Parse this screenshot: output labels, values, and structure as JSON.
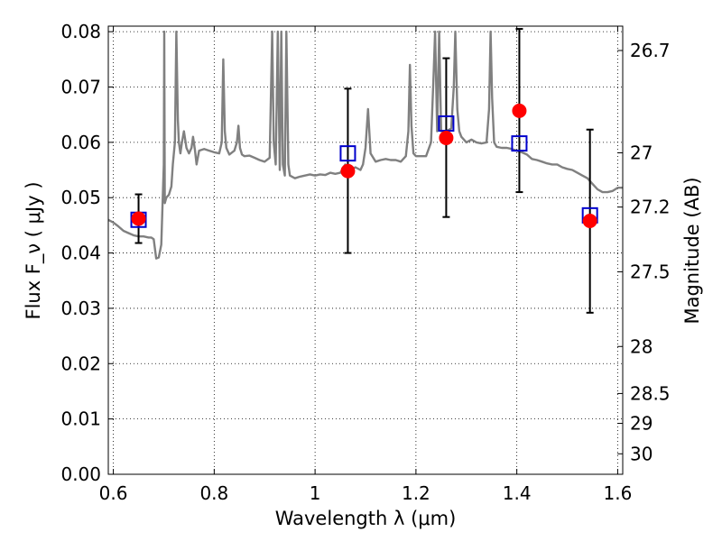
{
  "chart_data": {
    "type": "scatter",
    "xlabel": "Wavelength  λ (μm)",
    "ylabel": "Flux  F_ν  ( μJy )",
    "ylabel_right": "Magnitude (AB)",
    "xlim": [
      0.59,
      1.61
    ],
    "ylim": [
      0.0,
      0.081
    ],
    "grid": true,
    "x_ticks": [
      0.6,
      0.8,
      1.0,
      1.2,
      1.4,
      1.6
    ],
    "x_tick_labels": [
      "0.6",
      "0.8",
      "1",
      "1.2",
      "1.4",
      "1.6"
    ],
    "y_ticks": [
      0.0,
      0.01,
      0.02,
      0.03,
      0.04,
      0.05,
      0.06,
      0.07,
      0.08
    ],
    "y_tick_labels": [
      "0.00",
      "0.01",
      "0.02",
      "0.03",
      "0.04",
      "0.05",
      "0.06",
      "0.07",
      "0.08"
    ],
    "right_ticks": [
      {
        "label": "26.7",
        "flux": 0.0766
      },
      {
        "label": "27",
        "flux": 0.0581
      },
      {
        "label": "27.2",
        "flux": 0.0483
      },
      {
        "label": "27.5",
        "flux": 0.0366
      },
      {
        "label": "28",
        "flux": 0.0231
      },
      {
        "label": "28.5",
        "flux": 0.0146
      },
      {
        "label": "29",
        "flux": 0.0092
      },
      {
        "label": "30",
        "flux": 0.0037
      }
    ],
    "series": [
      {
        "kind": "model-spectrum",
        "color": "#808080",
        "x": [
          0.59,
          0.6,
          0.61,
          0.62,
          0.63,
          0.64,
          0.65,
          0.66,
          0.67,
          0.675,
          0.68,
          0.685,
          0.69,
          0.695,
          0.7,
          0.701,
          0.702,
          0.705,
          0.71,
          0.715,
          0.718,
          0.722,
          0.725,
          0.728,
          0.73,
          0.733,
          0.736,
          0.74,
          0.745,
          0.75,
          0.755,
          0.758,
          0.762,
          0.765,
          0.77,
          0.78,
          0.79,
          0.8,
          0.81,
          0.815,
          0.818,
          0.821,
          0.824,
          0.83,
          0.84,
          0.845,
          0.848,
          0.851,
          0.855,
          0.86,
          0.87,
          0.88,
          0.89,
          0.9,
          0.91,
          0.915,
          0.918,
          0.922,
          0.926,
          0.93,
          0.933,
          0.936,
          0.94,
          0.943,
          0.947,
          0.95,
          0.96,
          0.97,
          0.98,
          0.99,
          1.0,
          1.01,
          1.02,
          1.03,
          1.04,
          1.05,
          1.06,
          1.07,
          1.08,
          1.09,
          1.095,
          1.1,
          1.105,
          1.11,
          1.12,
          1.13,
          1.14,
          1.15,
          1.16,
          1.17,
          1.18,
          1.185,
          1.188,
          1.191,
          1.195,
          1.2,
          1.21,
          1.22,
          1.23,
          1.235,
          1.238,
          1.242,
          1.246,
          1.25,
          1.26,
          1.27,
          1.275,
          1.278,
          1.282,
          1.286,
          1.29,
          1.3,
          1.31,
          1.32,
          1.33,
          1.34,
          1.345,
          1.348,
          1.351,
          1.355,
          1.36,
          1.37,
          1.38,
          1.39,
          1.4,
          1.41,
          1.42,
          1.43,
          1.44,
          1.45,
          1.46,
          1.47,
          1.48,
          1.49,
          1.5,
          1.51,
          1.52,
          1.53,
          1.54,
          1.55,
          1.56,
          1.57,
          1.58,
          1.59,
          1.6,
          1.61
        ],
        "y": [
          0.046,
          0.0455,
          0.0448,
          0.044,
          0.0436,
          0.0432,
          0.043,
          0.043,
          0.0428,
          0.0428,
          0.0425,
          0.039,
          0.0392,
          0.0415,
          0.056,
          0.08,
          0.049,
          0.05,
          0.0505,
          0.052,
          0.056,
          0.06,
          0.08,
          0.064,
          0.06,
          0.058,
          0.06,
          0.062,
          0.059,
          0.058,
          0.059,
          0.061,
          0.0585,
          0.056,
          0.0585,
          0.0588,
          0.0585,
          0.0582,
          0.058,
          0.06,
          0.075,
          0.062,
          0.059,
          0.0578,
          0.0585,
          0.06,
          0.063,
          0.059,
          0.0578,
          0.0575,
          0.0576,
          0.0572,
          0.0568,
          0.0565,
          0.0572,
          0.08,
          0.06,
          0.056,
          0.08,
          0.055,
          0.08,
          0.056,
          0.054,
          0.08,
          0.056,
          0.054,
          0.0535,
          0.0538,
          0.054,
          0.0542,
          0.054,
          0.0542,
          0.0541,
          0.0545,
          0.0543,
          0.0545,
          0.056,
          0.055,
          0.0555,
          0.055,
          0.056,
          0.059,
          0.066,
          0.058,
          0.0565,
          0.0568,
          0.057,
          0.0568,
          0.0568,
          0.0565,
          0.0575,
          0.062,
          0.074,
          0.063,
          0.058,
          0.0575,
          0.0575,
          0.0575,
          0.06,
          0.072,
          0.08,
          0.062,
          0.08,
          0.062,
          0.062,
          0.0625,
          0.07,
          0.08,
          0.066,
          0.062,
          0.061,
          0.06,
          0.0605,
          0.06,
          0.0598,
          0.06,
          0.066,
          0.08,
          0.068,
          0.06,
          0.0592,
          0.059,
          0.059,
          0.0588,
          0.0585,
          0.0582,
          0.0578,
          0.057,
          0.0568,
          0.0565,
          0.0562,
          0.056,
          0.056,
          0.0555,
          0.0552,
          0.055,
          0.0545,
          0.054,
          0.0535,
          0.0525,
          0.0515,
          0.051,
          0.051,
          0.0512,
          0.0518,
          0.0518
        ]
      },
      {
        "kind": "observed",
        "color": "#ff0000",
        "marker": "circle",
        "points": [
          {
            "x": 0.65,
            "y": 0.0462,
            "ylow": 0.0418,
            "yhigh": 0.0506
          },
          {
            "x": 1.065,
            "y": 0.0548,
            "ylow": 0.04,
            "yhigh": 0.0697
          },
          {
            "x": 1.26,
            "y": 0.0608,
            "ylow": 0.0465,
            "yhigh": 0.0752
          },
          {
            "x": 1.405,
            "y": 0.0657,
            "ylow": 0.051,
            "yhigh": 0.0805
          },
          {
            "x": 1.545,
            "y": 0.0458,
            "ylow": 0.0292,
            "yhigh": 0.0623
          }
        ]
      },
      {
        "kind": "synthetic-photometry",
        "color": "#0000cc",
        "marker": "open-square",
        "points": [
          {
            "x": 0.65,
            "y": 0.046
          },
          {
            "x": 1.065,
            "y": 0.058
          },
          {
            "x": 1.26,
            "y": 0.0634
          },
          {
            "x": 1.405,
            "y": 0.0598
          },
          {
            "x": 1.545,
            "y": 0.0468
          }
        ]
      }
    ]
  }
}
